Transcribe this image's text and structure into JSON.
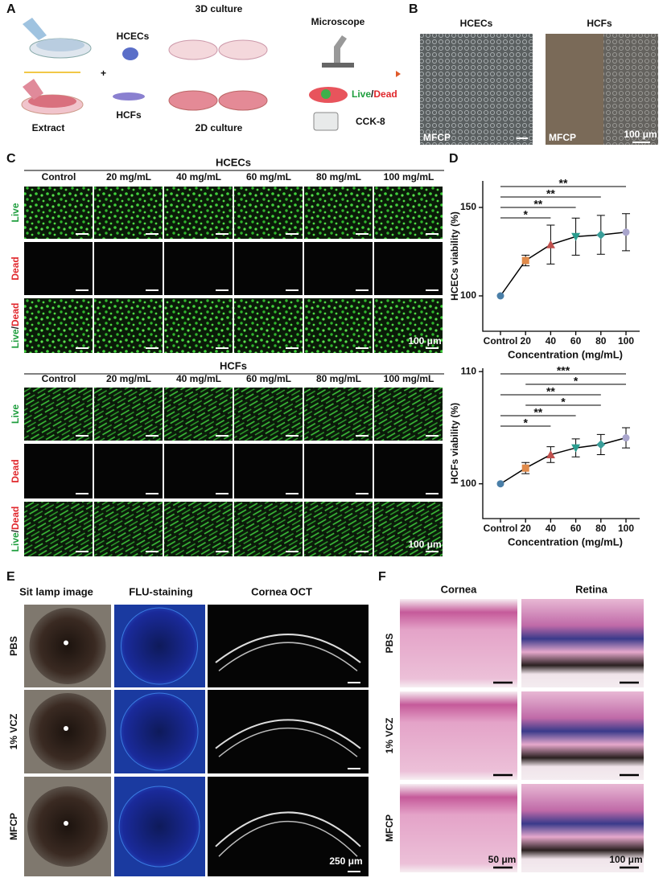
{
  "panel_a": {
    "letter": "A",
    "extract": "Extract",
    "hcecs": "HCECs",
    "hcfs": "HCFs",
    "culture_3d": "3D culture",
    "culture_2d": "2D culture",
    "microscope": "Microscope",
    "live": "Live",
    "slash": "/",
    "dead": "Dead",
    "cck8": "CCK-8"
  },
  "panel_b": {
    "letter": "B",
    "titles": [
      "HCECs",
      "HCFs"
    ],
    "image_labels": [
      "MFCP",
      "MFCP"
    ],
    "scale_bar": "100 μm"
  },
  "panel_c": {
    "letter": "C",
    "rows": [
      [
        {
          "text": "Live",
          "color": "#1f9e3e"
        }
      ],
      [
        {
          "text": "Dead",
          "color": "#e0262b"
        }
      ],
      [
        {
          "text": "Live",
          "color": "#1f9e3e"
        },
        {
          "text": "/",
          "color": "#222222"
        },
        {
          "text": "Dead",
          "color": "#e0262b"
        }
      ]
    ],
    "groups": [
      {
        "title": "HCECs",
        "columns": [
          "Control",
          "20 mg/mL",
          "40 mg/mL",
          "60 mg/mL",
          "80 mg/mL",
          "100 mg/mL"
        ],
        "scale_bar": "100 μm"
      },
      {
        "title": "HCFs",
        "columns": [
          "Control",
          "20 mg/mL",
          "40 mg/mL",
          "60 mg/mL",
          "80 mg/mL",
          "100 mg/mL"
        ],
        "scale_bar": "100 μm"
      }
    ]
  },
  "panel_d": {
    "letter": "D"
  },
  "chart_data": [
    {
      "type": "line",
      "x_label": "Concentration (mg/mL)",
      "y_label": "HCECs viability (%)",
      "categories": [
        "Control",
        "20",
        "40",
        "60",
        "80",
        "100"
      ],
      "series": [
        {
          "color": "#000000",
          "values": [
            100,
            120,
            129,
            133.5,
            134.5,
            136
          ],
          "errors": [
            0,
            3,
            11,
            10.5,
            11,
            10.5
          ]
        }
      ],
      "markers": [
        "circle",
        "square",
        "triangle",
        "triangle-down",
        "diamond",
        "circle"
      ],
      "marker_colors": [
        "#4a7fa8",
        "#e08a4a",
        "#c0504d",
        "#2a9d8f",
        "#3a9e9a",
        "#a9a5cc"
      ],
      "ylim": [
        80,
        165
      ],
      "yticks": [
        100,
        150
      ],
      "brackets": [
        {
          "from": "Control",
          "to": "100",
          "label": "**"
        },
        {
          "from": "Control",
          "to": "80",
          "label": "**"
        },
        {
          "from": "Control",
          "to": "60",
          "label": "**"
        },
        {
          "from": "Control",
          "to": "40",
          "label": "*"
        }
      ]
    },
    {
      "type": "line",
      "x_label": "Concentration (mg/mL)",
      "y_label": "HCFs viability (%)",
      "categories": [
        "Control",
        "20",
        "40",
        "60",
        "80",
        "100"
      ],
      "series": [
        {
          "color": "#000000",
          "values": [
            100,
            101.4,
            102.6,
            103.2,
            103.5,
            104.1
          ],
          "errors": [
            0,
            0.5,
            0.7,
            0.8,
            0.9,
            0.9
          ]
        }
      ],
      "markers": [
        "circle",
        "square",
        "triangle",
        "triangle-down",
        "diamond",
        "circle"
      ],
      "marker_colors": [
        "#4a7fa8",
        "#e08a4a",
        "#c0504d",
        "#2a9d8f",
        "#3a9e9a",
        "#a9a5cc"
      ],
      "ylim": [
        96.9,
        110.3
      ],
      "yticks": [
        100,
        110
      ],
      "brackets": [
        {
          "from": "Control",
          "to": "100",
          "label": "***"
        },
        {
          "from": "20",
          "to": "100",
          "label": "*"
        },
        {
          "from": "Control",
          "to": "80",
          "label": "**"
        },
        {
          "from": "20",
          "to": "80",
          "label": "*"
        },
        {
          "from": "Control",
          "to": "60",
          "label": "**"
        },
        {
          "from": "Control",
          "to": "40",
          "label": "*"
        }
      ]
    }
  ],
  "panel_e": {
    "letter": "E",
    "columns": [
      "Sit lamp image",
      "FLU-staining",
      "Cornea OCT"
    ],
    "rows": [
      "PBS",
      "1% VCZ",
      "MFCP"
    ],
    "scale_bar": "250 μm"
  },
  "panel_f": {
    "letter": "F",
    "columns": [
      "Cornea",
      "Retina"
    ],
    "rows": [
      "PBS",
      "1% VCZ",
      "MFCP"
    ],
    "scale_bars": [
      "50 μm",
      "100 μm"
    ]
  }
}
